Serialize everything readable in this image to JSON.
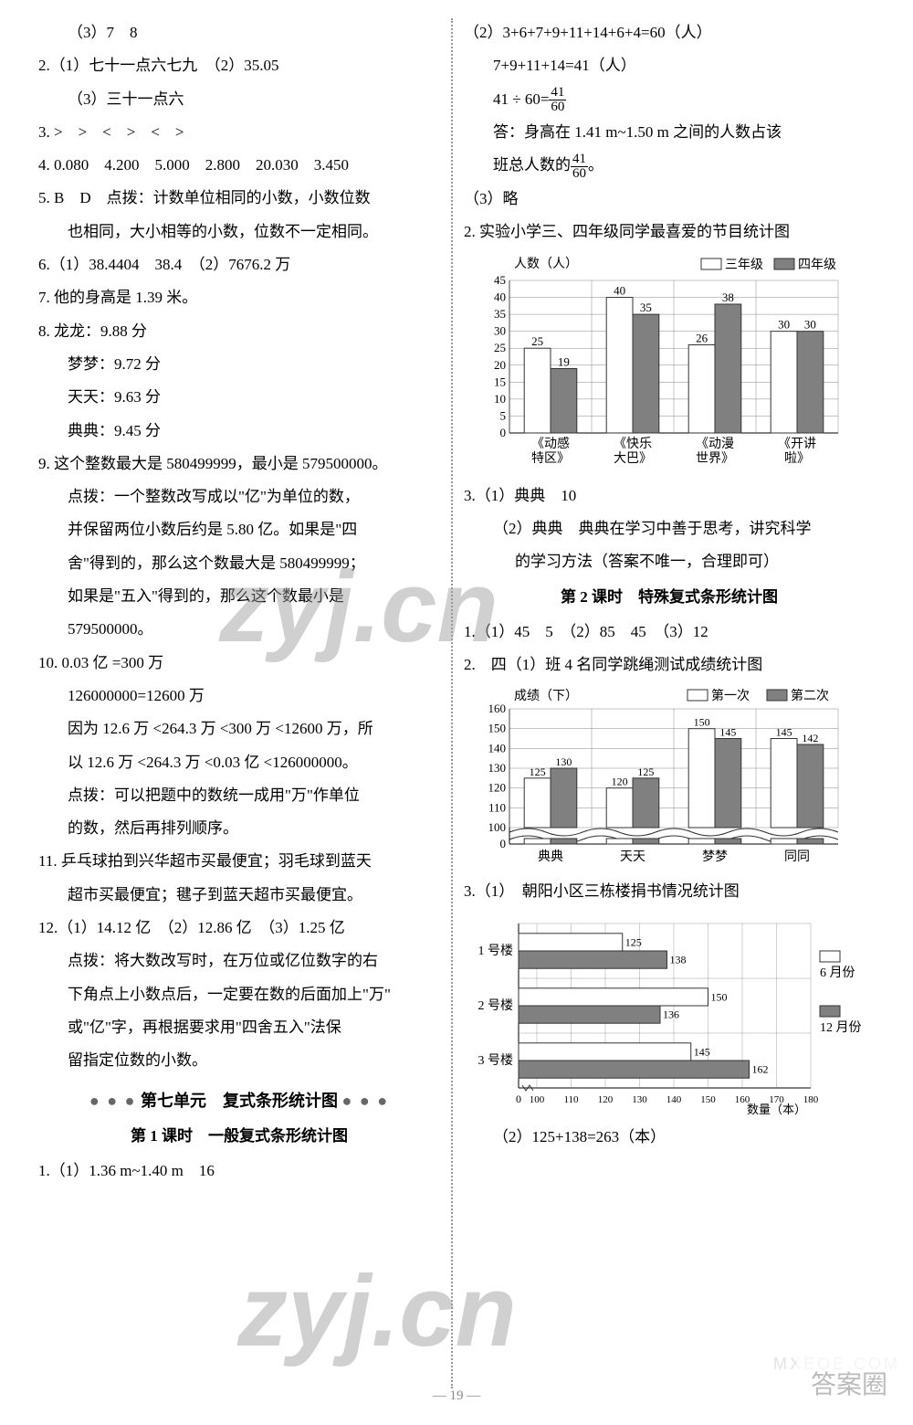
{
  "left": {
    "l1": "（3）7　8",
    "l2": "2.（1）七十一点六七九　（2）35.05",
    "l3": "（3）三十一点六",
    "l4": "3. >　>　<　>　<　>",
    "l5": "4. 0.080　4.200　5.000　2.800　20.030　3.450",
    "l6": "5. B　D　点拨：计数单位相同的小数，小数位数",
    "l6b": "也相同，大小相等的小数，位数不一定相同。",
    "l7": "6.（1）38.4404　38.4　（2）7676.2 万",
    "l8": "7. 他的身高是 1.39 米。",
    "l9": "8. 龙龙：9.88 分",
    "l9b": "梦梦：9.72 分",
    "l9c": "天天：9.63 分",
    "l9d": "典典：9.45 分",
    "l10": "9. 这个整数最大是 580499999，最小是 579500000。",
    "l10a": "点拨：一个整数改写成以\"亿\"为单位的数，",
    "l10b": "并保留两位小数后约是 5.80 亿。如果是\"四",
    "l10c": "舍\"得到的，那么这个数最大是 580499999；",
    "l10d": "如果是\"五入\"得到的，那么这个数最小是",
    "l10e": "579500000。",
    "l11": "10. 0.03 亿 =300 万",
    "l11a": "126000000=12600 万",
    "l11b": "因为 12.6 万 <264.3 万 <300 万 <12600 万，所",
    "l11c": "以 12.6 万 <264.3 万 <0.03 亿 <126000000。",
    "l11d": "点拨：可以把题中的数统一成用\"万\"作单位",
    "l11e": "的数，然后再排列顺序。",
    "l12": "11. 乒乓球拍到兴华超市买最便宜；羽毛球到蓝天",
    "l12a": "超市买最便宜；毽子到蓝天超市买最便宜。",
    "l13": "12.（1）14.12 亿　（2）12.86 亿　（3）1.25 亿",
    "l13a": "点拨：将大数改写时，在万位或亿位数字的右",
    "l13b": "下角点上小数点后，一定要在数的后面加上\"万\"",
    "l13c": "或\"亿\"字，再根据要求用\"四舍五入\"法保",
    "l13d": "留指定位数的小数。",
    "unit7": "第七单元　复式条形统计图",
    "lesson1": "第 1 课时　一般复式条形统计图",
    "l14": "1.（1）1.36 m~1.40 m　16"
  },
  "right": {
    "r1": "（2）3+6+7+9+11+14+6+4=60（人）",
    "r1a": "7+9+11+14=41（人）",
    "r1b_pre": "41 ÷ 60=",
    "r1b_frac_n": "41",
    "r1b_frac_d": "60",
    "r1c": "答：身高在 1.41 m~1.50 m 之间的人数占该",
    "r1d_pre": "班总人数的",
    "r1d_frac_n": "41",
    "r1d_frac_d": "60",
    "r1d_post": "。",
    "r2": "（3）略",
    "chart1_title": "2. 实验小学三、四年级同学最喜爱的节目统计图",
    "chart1": {
      "ylabel": "人数（人）",
      "legend1": "三年级",
      "legend2": "四年级",
      "ymax": 45,
      "ystep": 5,
      "categories": [
        "《动感\n特区》",
        "《快乐\n大巴》",
        "《动漫\n世界》",
        "《开讲\n啦》"
      ],
      "series1": [
        25,
        40,
        26,
        30
      ],
      "series2": [
        19,
        35,
        38,
        30
      ],
      "color1": "#ffffff",
      "color2": "#808080",
      "grid_color": "#888",
      "text_color": "#222"
    },
    "r3": "3.（1）典典　10",
    "r3a": "（2）典典　典典在学习中善于思考，讲究科学",
    "r3b": "的学习方法（答案不唯一，合理即可）",
    "lesson2": "第 2 课时　特殊复式条形统计图",
    "r4": "1.（1）45　5　（2）85　45　（3）12",
    "chart2_pre": "2.",
    "chart2_title": "四（1）班 4 名同学跳绳测试成绩统计图",
    "chart2": {
      "ylabel": "成绩（下）",
      "legend1": "第一次",
      "legend2": "第二次",
      "ymax": 160,
      "ymin": 100,
      "ystep": 10,
      "break": true,
      "categories": [
        "典典",
        "天天",
        "梦梦",
        "同同"
      ],
      "series1": [
        125,
        120,
        150,
        145
      ],
      "series2": [
        130,
        125,
        145,
        142
      ],
      "color1": "#ffffff",
      "color2": "#808080",
      "grid_color": "#888"
    },
    "chart3_pre": "3.（1）",
    "chart3_title": "朝阳小区三栋楼捐书情况统计图",
    "chart3": {
      "legend1": "6 月份",
      "legend2": "12 月份",
      "xmax": 180,
      "xstep": 10,
      "xlabel": "数量（本）",
      "categories": [
        "1 号楼",
        "2 号楼",
        "3 号楼"
      ],
      "series1": [
        125,
        150,
        145
      ],
      "series2": [
        138,
        136,
        162
      ],
      "color1": "#ffffff",
      "color2": "#808080"
    },
    "r5": "（2）125+138=263（本）"
  },
  "pagenum": "19"
}
